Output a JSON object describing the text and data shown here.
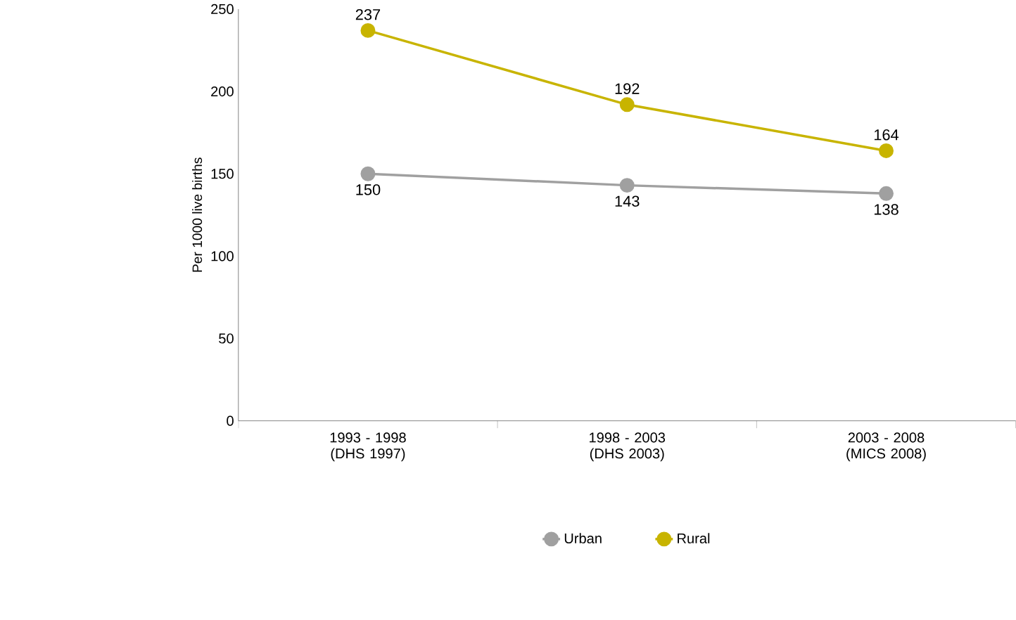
{
  "chart_data": {
    "type": "line",
    "ylabel": "Per 1000 live births",
    "categories": [
      "1993 - 1998 (DHS 1997)",
      "1998 - 2003 (DHS 2003)",
      "2003 - 2008 (MICS 2008)"
    ],
    "series": [
      {
        "name": "Urban",
        "color": "#a0a0a0",
        "values": [
          150,
          143,
          138
        ]
      },
      {
        "name": "Rural",
        "color": "#c8b400",
        "values": [
          237,
          192,
          164
        ]
      }
    ],
    "ylim": [
      0,
      250
    ],
    "yticks": [
      0,
      50,
      100,
      150,
      200,
      250
    ],
    "grid": false,
    "legend": "bottom",
    "marker": "circle",
    "line_style": "solid",
    "data_labels": true
  }
}
